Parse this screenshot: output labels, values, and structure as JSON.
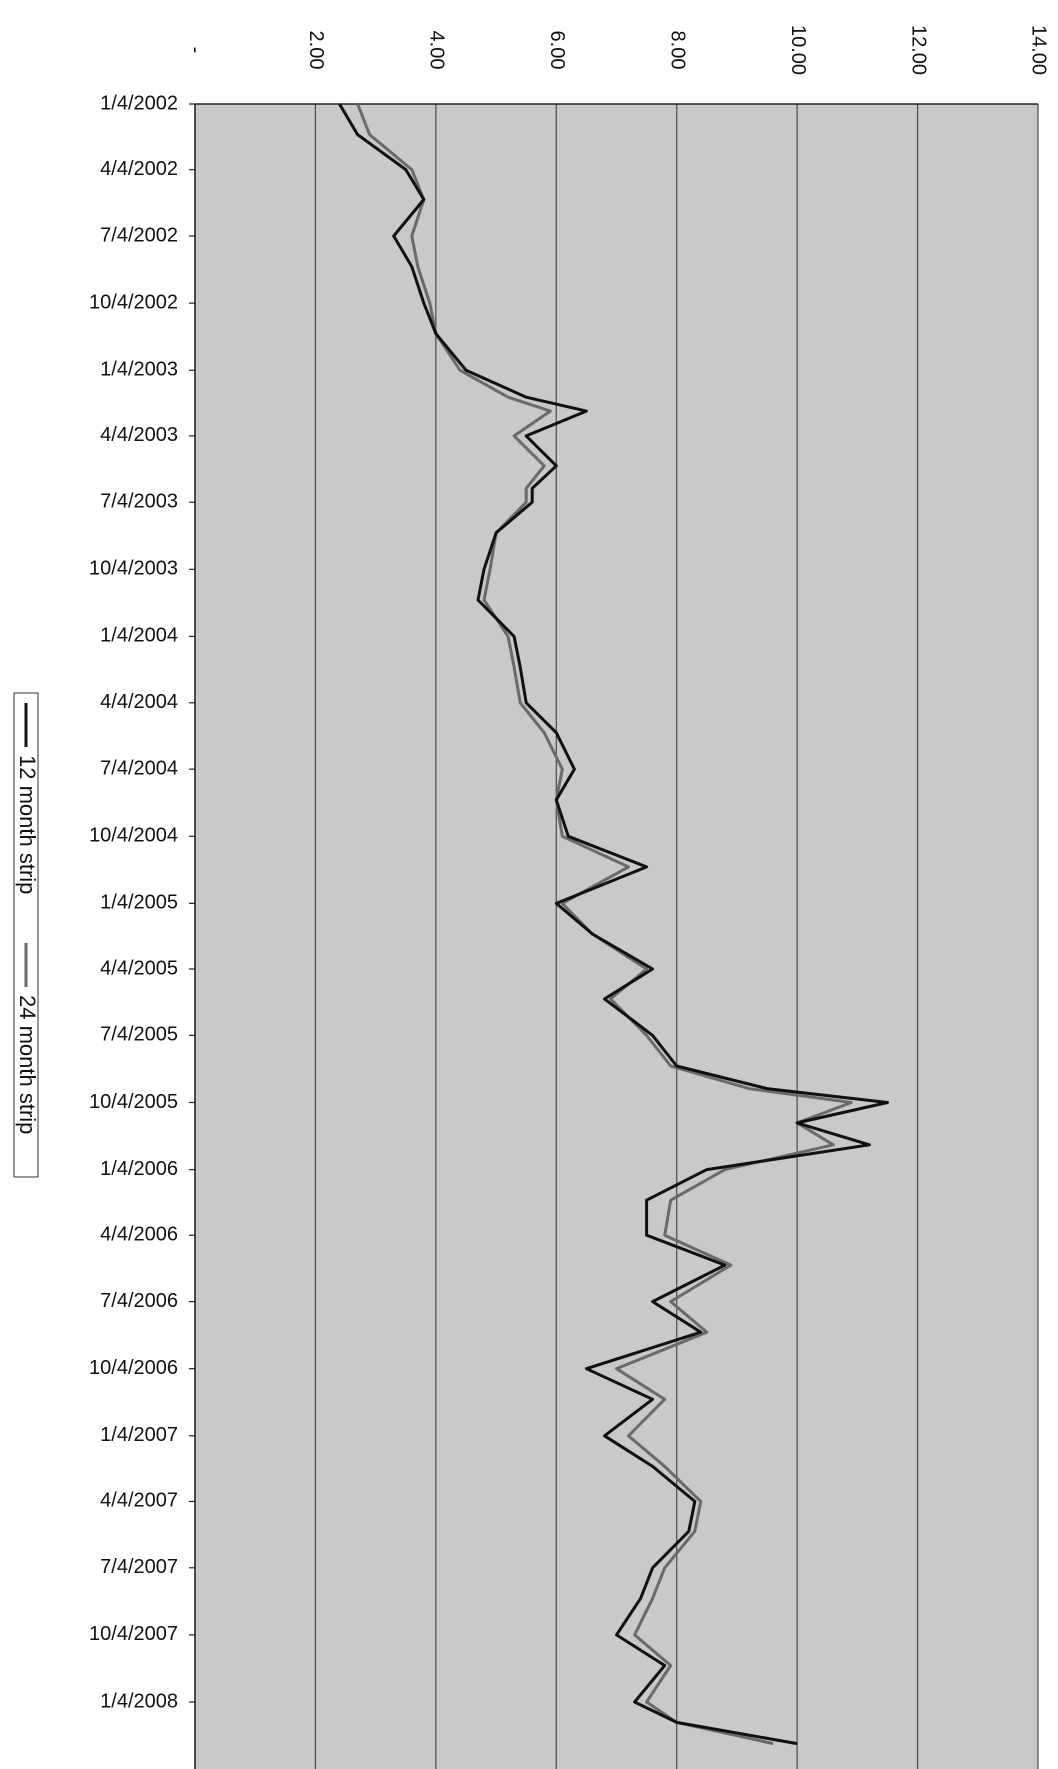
{
  "chart_data": {
    "type": "line",
    "orientation": "rotated-90",
    "title": "",
    "xlabel": "",
    "ylabel": "",
    "ylim": [
      0,
      14
    ],
    "value_ticks": [
      "-",
      "2.00",
      "4.00",
      "6.00",
      "8.00",
      "10.00",
      "12.00",
      "14.00"
    ],
    "date_ticks": [
      "1/4/2002",
      "4/4/2002",
      "7/4/2002",
      "10/4/2002",
      "1/4/2003",
      "4/4/2003",
      "7/4/2003",
      "10/4/2003",
      "1/4/2004",
      "4/4/2004",
      "7/4/2004",
      "10/4/2004",
      "1/4/2005",
      "4/4/2005",
      "7/4/2005",
      "10/4/2005",
      "1/4/2006",
      "4/4/2006",
      "7/4/2006",
      "10/4/2006",
      "1/4/2007",
      "4/4/2007",
      "7/4/2007",
      "10/4/2007",
      "1/4/2008"
    ],
    "grid": true,
    "legend_position": "left",
    "x": [
      "2002-01-04",
      "2002-02-15",
      "2002-04-04",
      "2002-05-15",
      "2002-07-04",
      "2002-08-15",
      "2002-10-04",
      "2002-11-15",
      "2003-01-04",
      "2003-02-10",
      "2003-03-01",
      "2003-04-04",
      "2003-05-15",
      "2003-06-15",
      "2003-07-04",
      "2003-08-15",
      "2003-10-04",
      "2003-11-15",
      "2004-01-04",
      "2004-02-15",
      "2004-04-04",
      "2004-05-15",
      "2004-07-04",
      "2004-08-15",
      "2004-10-04",
      "2004-11-15",
      "2005-01-04",
      "2005-02-15",
      "2005-04-04",
      "2005-05-15",
      "2005-07-04",
      "2005-08-15",
      "2005-09-15",
      "2005-10-04",
      "2005-11-01",
      "2005-12-01",
      "2006-01-04",
      "2006-02-15",
      "2006-04-04",
      "2006-05-15",
      "2006-07-04",
      "2006-08-15",
      "2006-10-04",
      "2006-11-15",
      "2007-01-04",
      "2007-02-15",
      "2007-04-04",
      "2007-05-15",
      "2007-07-04",
      "2007-08-15",
      "2007-10-04",
      "2007-11-15",
      "2008-01-04",
      "2008-02-01",
      "2008-03-01"
    ],
    "series": [
      {
        "name": "12 month strip",
        "color": "#111111",
        "values": [
          2.4,
          2.7,
          3.5,
          3.8,
          3.3,
          3.6,
          3.8,
          4.0,
          4.5,
          5.5,
          6.5,
          5.5,
          6.0,
          5.6,
          5.6,
          5.0,
          4.8,
          4.7,
          5.3,
          5.4,
          5.5,
          6.0,
          6.3,
          6.0,
          6.2,
          7.5,
          6.0,
          6.6,
          7.6,
          6.8,
          7.6,
          8.0,
          9.5,
          11.5,
          10.0,
          11.2,
          8.5,
          7.5,
          7.5,
          8.8,
          7.6,
          8.4,
          6.5,
          7.6,
          6.8,
          7.6,
          8.3,
          8.2,
          7.6,
          7.4,
          7.0,
          7.8,
          7.3,
          8.0,
          10.0
        ]
      },
      {
        "name": "24 month strip",
        "color": "#6a6a6a",
        "values": [
          2.7,
          2.9,
          3.6,
          3.8,
          3.6,
          3.7,
          3.9,
          4.0,
          4.4,
          5.2,
          5.9,
          5.3,
          5.8,
          5.5,
          5.5,
          5.0,
          4.9,
          4.8,
          5.2,
          5.3,
          5.4,
          5.8,
          6.1,
          6.0,
          6.1,
          7.2,
          6.1,
          6.6,
          7.5,
          6.9,
          7.5,
          7.9,
          9.2,
          10.9,
          10.0,
          10.6,
          8.8,
          7.9,
          7.8,
          8.9,
          7.9,
          8.5,
          7.0,
          7.8,
          7.2,
          7.8,
          8.4,
          8.3,
          7.8,
          7.6,
          7.3,
          7.9,
          7.5,
          8.0,
          9.6
        ]
      }
    ]
  }
}
